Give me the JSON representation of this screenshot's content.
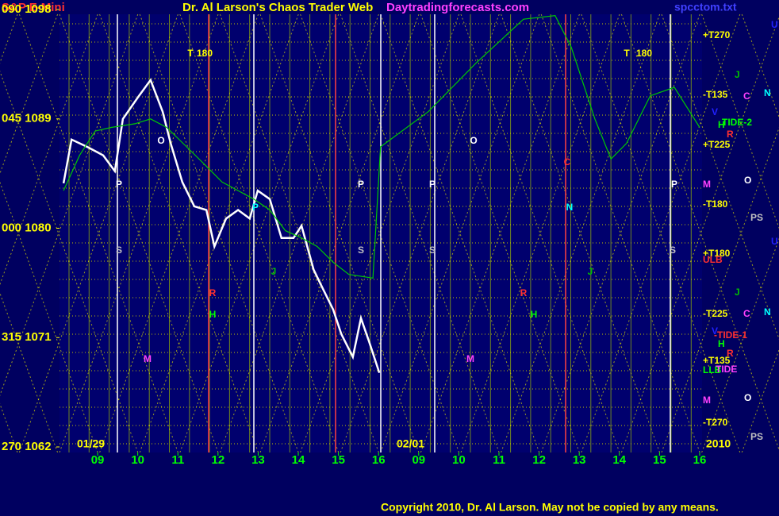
{
  "chart_data": {
    "type": "line",
    "subtitle": "S&P E-Mini",
    "title": "Dr. Al Larson's Chaos Trader Web",
    "source": "Daytradingforecasts.com",
    "file": "spcctom.txt",
    "copyright": "Copyright 2010, Dr. Al Larson. May not be copied by any means.",
    "ylim": [
      1062,
      1098
    ],
    "yticks": [
      {
        "value": 1098,
        "label": "090 1098"
      },
      {
        "value": 1089,
        "label": "045 1089"
      },
      {
        "value": 1080,
        "label": "000 1080"
      },
      {
        "value": 1071,
        "label": "315 1071"
      },
      {
        "value": 1062,
        "label": "270 1062"
      }
    ],
    "xlim": [
      -0.95,
      15.06
    ],
    "xticks": [
      {
        "value": 0,
        "label": "09"
      },
      {
        "value": 1,
        "label": "10"
      },
      {
        "value": 2,
        "label": "11"
      },
      {
        "value": 3,
        "label": "12"
      },
      {
        "value": 4,
        "label": "13"
      },
      {
        "value": 5,
        "label": "14"
      },
      {
        "value": 6,
        "label": "15"
      },
      {
        "value": 7,
        "label": "16"
      },
      {
        "value": 8,
        "label": "09"
      },
      {
        "value": 9,
        "label": "10"
      },
      {
        "value": 10,
        "label": "11"
      },
      {
        "value": 11,
        "label": "12"
      },
      {
        "value": 12,
        "label": "13"
      },
      {
        "value": 13,
        "label": "14"
      },
      {
        "value": 14,
        "label": "15"
      },
      {
        "value": 15,
        "label": "16"
      }
    ],
    "date_labels": [
      "01/29",
      "02/01",
      "2010"
    ],
    "annotations": [
      "T",
      "180",
      "T",
      "180",
      "P",
      "P",
      "P",
      "P",
      "P",
      "S",
      "S",
      "S",
      "S",
      "O",
      "O",
      "M",
      "M",
      "R",
      "R",
      "H",
      "H",
      "J",
      "J",
      "N",
      "C"
    ],
    "right_labels": [
      "+T270",
      "-T135",
      "+T225",
      "M",
      "-T180",
      "+T180",
      "ULB",
      "-T225",
      "+T135",
      "LLB",
      "M",
      "-T270"
    ],
    "side_labels": [
      "U",
      "J",
      "C",
      "N",
      "V",
      "H",
      "TIDE-2",
      "R",
      "O",
      "PS",
      "U",
      "J",
      "C",
      "N",
      "V",
      "-TIDE-1",
      "H",
      "R",
      "TIDE",
      "O",
      "PS"
    ],
    "series": [
      {
        "color": "#ffffff",
        "x": [
          -0.85,
          -0.65,
          -0.26,
          0.14,
          0.43,
          0.63,
          1.03,
          1.32,
          1.62,
          1.82,
          2.11,
          2.41,
          2.71,
          2.91,
          3.2,
          3.5,
          3.79,
          3.99,
          4.29,
          4.58,
          4.88,
          5.08,
          5.38,
          5.57,
          5.87,
          6.07,
          6.36,
          6.56,
          6.76,
          7.02
        ],
        "values": [
          1083.7,
          1087.3,
          1086.7,
          1086,
          1084.7,
          1089,
          1090.9,
          1092.2,
          1089.6,
          1087,
          1083.8,
          1081.8,
          1081.5,
          1078.5,
          1080.8,
          1081.5,
          1080.8,
          1083.1,
          1082.4,
          1079.2,
          1079.2,
          1080.2,
          1076.6,
          1075.3,
          1073.3,
          1071.3,
          1069.4,
          1072.6,
          1070.7,
          1068.1
        ]
      },
      {
        "color": "#00c800",
        "x": [
          -0.85,
          -0.45,
          -0.06,
          0.34,
          0.93,
          1.32,
          1.72,
          2.31,
          2.71,
          3.1,
          3.5,
          3.89,
          4.29,
          4.68,
          5.08,
          5.47,
          5.87,
          6.26,
          6.86,
          7.05,
          8.24,
          9.43,
          10.61,
          11.4,
          11.8,
          12.39,
          12.79,
          13.18,
          13.77,
          14.37,
          15.0
        ],
        "values": [
          1083.1,
          1086,
          1088,
          1088.3,
          1088.6,
          1089,
          1088.3,
          1086.4,
          1085.1,
          1083.8,
          1083.1,
          1082.4,
          1081.5,
          1079.8,
          1079.2,
          1078.5,
          1077.2,
          1076.2,
          1075.9,
          1086.7,
          1089.6,
          1093.6,
          1097.2,
          1097.5,
          1094.9,
          1089,
          1085.7,
          1087,
          1090.9,
          1091.6,
          1088.3
        ]
      }
    ]
  }
}
